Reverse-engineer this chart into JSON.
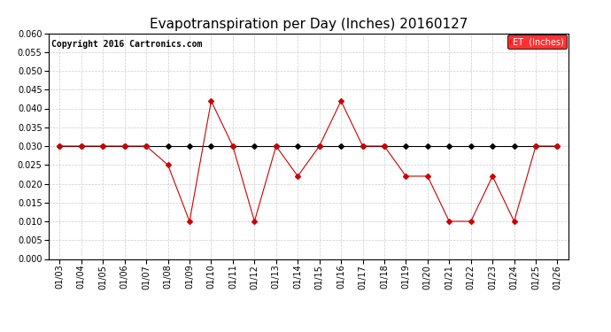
{
  "title": "Evapotranspiration per Day (Inches) 20160127",
  "copyright": "Copyright 2016 Cartronics.com",
  "legend_label": "ET  (Inches)",
  "legend_bg": "#FF0000",
  "legend_text_color": "#FFFFFF",
  "x_labels": [
    "01/03",
    "01/04",
    "01/05",
    "01/06",
    "01/07",
    "01/08",
    "01/09",
    "01/10",
    "01/11",
    "01/12",
    "01/13",
    "01/14",
    "01/15",
    "01/16",
    "01/17",
    "01/18",
    "01/19",
    "01/20",
    "01/21",
    "01/22",
    "01/23",
    "01/24",
    "01/25",
    "01/26"
  ],
  "et_values": [
    0.03,
    0.03,
    0.03,
    0.03,
    0.03,
    0.025,
    0.01,
    0.042,
    0.03,
    0.01,
    0.03,
    0.022,
    0.03,
    0.042,
    0.03,
    0.03,
    0.022,
    0.022,
    0.01,
    0.01,
    0.022,
    0.01,
    0.03,
    0.03
  ],
  "avg_values": [
    0.03,
    0.03,
    0.03,
    0.03,
    0.03,
    0.03,
    0.03,
    0.03,
    0.03,
    0.03,
    0.03,
    0.03,
    0.03,
    0.03,
    0.03,
    0.03,
    0.03,
    0.03,
    0.03,
    0.03,
    0.03,
    0.03,
    0.03,
    0.03
  ],
  "ylim": [
    0.0,
    0.06
  ],
  "yticks": [
    0.0,
    0.005,
    0.01,
    0.015,
    0.02,
    0.025,
    0.03,
    0.035,
    0.04,
    0.045,
    0.05,
    0.055,
    0.06
  ],
  "line_color": "#CC0000",
  "avg_line_color": "#000000",
  "marker": "D",
  "marker_size": 3,
  "bg_color": "#FFFFFF",
  "grid_color": "#CCCCCC",
  "title_fontsize": 11,
  "tick_fontsize": 7,
  "copyright_fontsize": 7
}
